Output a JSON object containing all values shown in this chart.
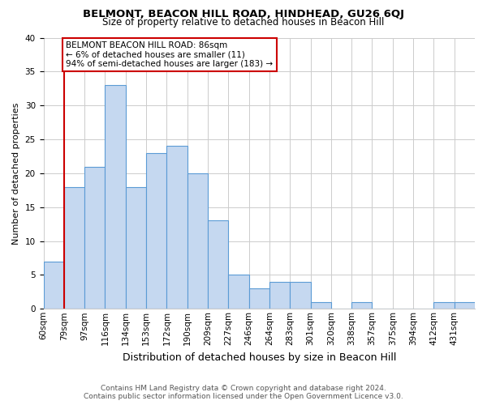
{
  "title": "BELMONT, BEACON HILL ROAD, HINDHEAD, GU26 6QJ",
  "subtitle": "Size of property relative to detached houses in Beacon Hill",
  "xlabel": "Distribution of detached houses by size in Beacon Hill",
  "ylabel": "Number of detached properties",
  "bin_labels": [
    "60sqm",
    "79sqm",
    "97sqm",
    "116sqm",
    "134sqm",
    "153sqm",
    "172sqm",
    "190sqm",
    "209sqm",
    "227sqm",
    "246sqm",
    "264sqm",
    "283sqm",
    "301sqm",
    "320sqm",
    "338sqm",
    "357sqm",
    "375sqm",
    "394sqm",
    "412sqm",
    "431sqm"
  ],
  "bin_edges": [
    0,
    1,
    2,
    3,
    4,
    5,
    6,
    7,
    8,
    9,
    10,
    11,
    12,
    13,
    14,
    15,
    16,
    17,
    18,
    19,
    20,
    21
  ],
  "counts": [
    7,
    18,
    21,
    33,
    18,
    23,
    24,
    20,
    13,
    5,
    3,
    4,
    4,
    1,
    0,
    1,
    0,
    0,
    0,
    1,
    1
  ],
  "bar_color": "#c5d8f0",
  "bar_edge_color": "#5b9bd5",
  "marker_bin": 1,
  "marker_color": "#cc0000",
  "annotation_line1": "BELMONT BEACON HILL ROAD: 86sqm",
  "annotation_line2": "← 6% of detached houses are smaller (11)",
  "annotation_line3": "94% of semi-detached houses are larger (183) →",
  "annotation_box_edge": "#cc0000",
  "ylim": [
    0,
    40
  ],
  "yticks": [
    0,
    5,
    10,
    15,
    20,
    25,
    30,
    35,
    40
  ],
  "footer_line1": "Contains HM Land Registry data © Crown copyright and database right 2024.",
  "footer_line2": "Contains public sector information licensed under the Open Government Licence v3.0.",
  "bg_color": "#ffffff",
  "grid_color": "#cccccc",
  "title_fontsize": 9.5,
  "subtitle_fontsize": 8.5,
  "ylabel_fontsize": 8,
  "xlabel_fontsize": 9,
  "tick_fontsize": 7.5,
  "annotation_fontsize": 7.5,
  "footer_fontsize": 6.5
}
